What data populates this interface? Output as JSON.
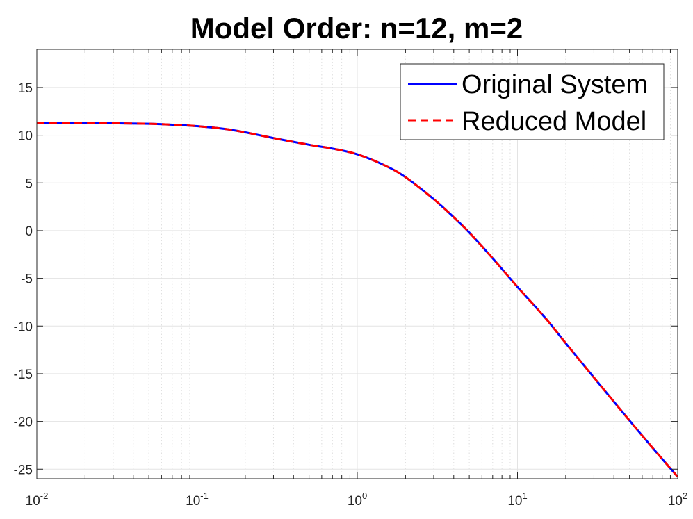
{
  "chart_data": {
    "type": "line",
    "title": "Model Order: n=12, m=2",
    "xlabel": "",
    "ylabel": "",
    "x_scale": "log",
    "xlim": [
      0.01,
      100
    ],
    "ylim": [
      -26,
      19
    ],
    "grid": true,
    "minor_grid_x": true,
    "legend_position": "top-right",
    "x_ticks": [
      {
        "base": "10",
        "exp": "-2",
        "value": 0.01
      },
      {
        "base": "10",
        "exp": "-1",
        "value": 0.1
      },
      {
        "base": "10",
        "exp": "0",
        "value": 1
      },
      {
        "base": "10",
        "exp": "1",
        "value": 10
      },
      {
        "base": "10",
        "exp": "2",
        "value": 100
      }
    ],
    "y_ticks": [
      {
        "label": "15",
        "value": 15
      },
      {
        "label": "10",
        "value": 10
      },
      {
        "label": "5",
        "value": 5
      },
      {
        "label": "0",
        "value": 0
      },
      {
        "label": "-5",
        "value": -5
      },
      {
        "label": "-10",
        "value": -10
      },
      {
        "label": "-15",
        "value": -15
      },
      {
        "label": "-20",
        "value": -20
      },
      {
        "label": "-25",
        "value": -25
      }
    ],
    "x": [
      0.01,
      0.02,
      0.03,
      0.05,
      0.07,
      0.1,
      0.15,
      0.2,
      0.3,
      0.5,
      0.7,
      1,
      1.5,
      2,
      3,
      4,
      5,
      7,
      10,
      15,
      20,
      30,
      50,
      70,
      100
    ],
    "series": [
      {
        "name": "Original System",
        "color": "#0000ff",
        "style": "solid",
        "values": [
          11.3,
          11.3,
          11.25,
          11.2,
          11.1,
          10.95,
          10.65,
          10.3,
          9.7,
          9.0,
          8.6,
          8.0,
          6.8,
          5.6,
          3.3,
          1.4,
          -0.2,
          -2.9,
          -5.9,
          -9.2,
          -11.8,
          -15.4,
          -19.9,
          -22.8,
          -25.8
        ]
      },
      {
        "name": "Reduced Model",
        "color": "#ff0000",
        "style": "dashed",
        "values": [
          11.3,
          11.3,
          11.25,
          11.2,
          11.1,
          10.95,
          10.65,
          10.3,
          9.7,
          9.0,
          8.6,
          8.0,
          6.8,
          5.6,
          3.3,
          1.4,
          -0.2,
          -2.9,
          -5.9,
          -9.2,
          -11.8,
          -15.4,
          -19.9,
          -22.8,
          -25.8
        ]
      }
    ]
  }
}
